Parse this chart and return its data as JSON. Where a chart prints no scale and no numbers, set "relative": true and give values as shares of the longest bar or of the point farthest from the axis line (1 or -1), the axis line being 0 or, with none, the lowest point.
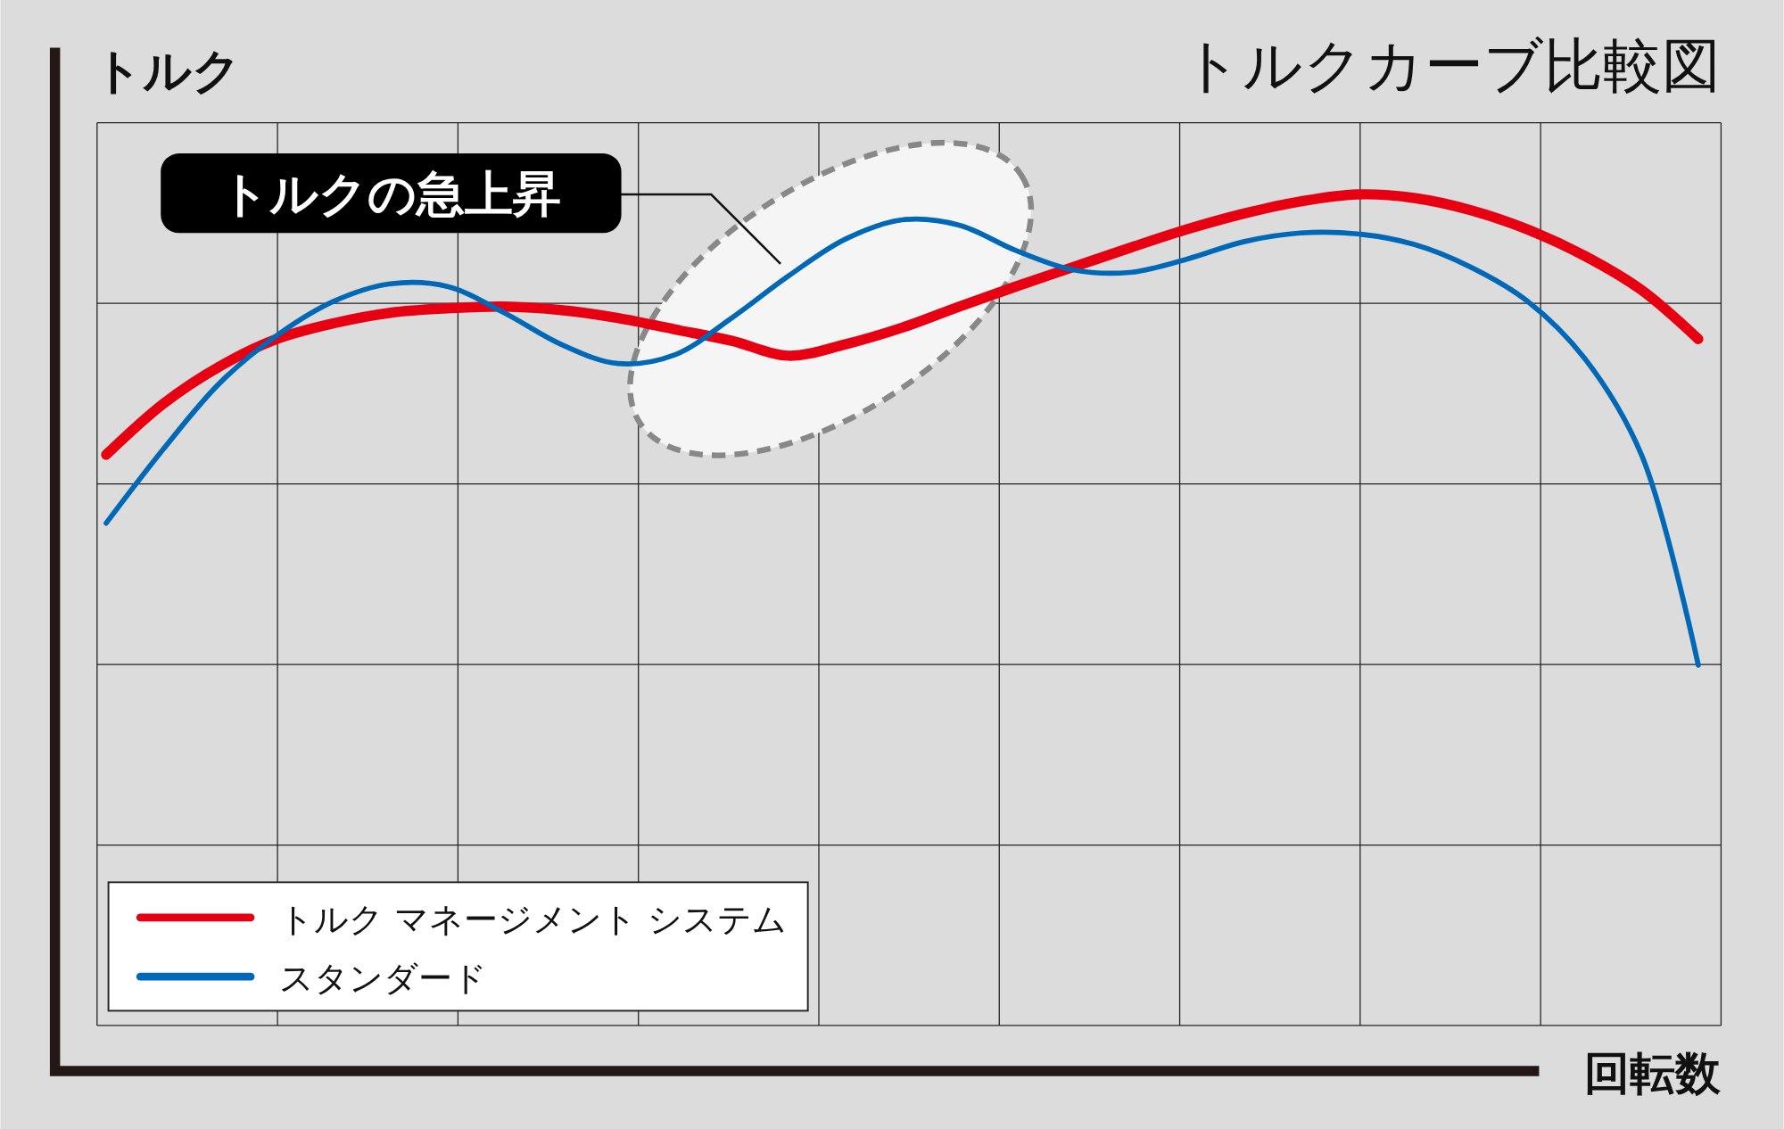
{
  "chart_data": {
    "type": "line",
    "title": "トルクカーブ比較図",
    "xlabel": "回転数",
    "ylabel": "トルク",
    "relative": true,
    "grid": true,
    "legend": "bottom left",
    "annotations": [
      "トルクの急上昇"
    ],
    "categories": [
      null,
      null,
      null,
      null,
      null,
      null,
      null,
      null,
      null,
      null,
      null,
      null,
      null,
      null,
      null,
      null,
      null,
      null,
      null,
      null,
      null,
      null,
      null,
      null,
      null,
      null,
      null,
      null,
      null
    ],
    "series": [
      {
        "name": "トルク マネージメント システム",
        "color": "#e60012",
        "values": [
          0.703,
          0.761,
          0.804,
          0.835,
          0.853,
          0.865,
          0.87,
          0.872,
          0.868,
          0.859,
          0.846,
          0.833,
          0.816,
          0.829,
          0.848,
          0.872,
          0.895,
          0.917,
          0.939,
          0.96,
          0.978,
          0.992,
          1,
          0.996,
          0.982,
          0.96,
          0.93,
          0.891,
          0.835
        ]
      },
      {
        "name": "スタンダード",
        "color": "#0068b7",
        "values": [
          0.625,
          0.709,
          0.785,
          0.839,
          0.878,
          0.898,
          0.895,
          0.865,
          0.829,
          0.807,
          0.817,
          0.859,
          0.907,
          0.949,
          0.971,
          0.965,
          0.936,
          0.914,
          0.911,
          0.926,
          0.946,
          0.956,
          0.955,
          0.943,
          0.917,
          0.878,
          0.813,
          0.703,
          0.463
        ]
      }
    ]
  }
}
